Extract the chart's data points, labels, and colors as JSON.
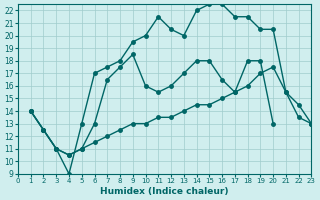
{
  "xlabel": "Humidex (Indice chaleur)",
  "bg_color": "#d0eeee",
  "grid_color": "#a0cccc",
  "line_color": "#006666",
  "xlim": [
    0,
    23
  ],
  "ylim": [
    9,
    22.5
  ],
  "xticks": [
    0,
    1,
    2,
    3,
    4,
    5,
    6,
    7,
    8,
    9,
    10,
    11,
    12,
    13,
    14,
    15,
    16,
    17,
    18,
    19,
    20,
    21,
    22,
    23
  ],
  "yticks": [
    9,
    10,
    11,
    12,
    13,
    14,
    15,
    16,
    17,
    18,
    19,
    20,
    21,
    22
  ],
  "line1": {
    "x": [
      1,
      2,
      3,
      4,
      5,
      6,
      7,
      8,
      9,
      10,
      11,
      12,
      13,
      14,
      15,
      16,
      17,
      18,
      19,
      20,
      21,
      22,
      23
    ],
    "y": [
      14,
      12.5,
      11,
      9,
      13,
      17,
      17.5,
      18,
      19.5,
      20,
      21.5,
      20.5,
      20,
      22,
      22.5,
      22.5,
      21.5,
      21.5,
      20.5,
      20.5,
      15.5,
      14.5,
      13
    ]
  },
  "line2": {
    "x": [
      1,
      2,
      3,
      4,
      5,
      6,
      7,
      8,
      9,
      10,
      11,
      12,
      13,
      14,
      15,
      16,
      17,
      18,
      19,
      20
    ],
    "y": [
      14,
      12.5,
      11,
      10.5,
      11,
      13,
      16.5,
      17.5,
      18.5,
      16,
      15.5,
      16,
      17,
      18,
      18,
      16.5,
      15.5,
      18,
      18,
      13
    ]
  },
  "line3": {
    "x": [
      1,
      2,
      3,
      4,
      5,
      6,
      7,
      8,
      9,
      10,
      11,
      12,
      13,
      14,
      15,
      16,
      17,
      18,
      19,
      20,
      21,
      22,
      23
    ],
    "y": [
      14,
      12.5,
      11,
      10.5,
      11,
      11.5,
      12,
      12.5,
      13,
      13,
      13.5,
      13.5,
      14,
      14.5,
      14.5,
      15,
      15.5,
      16,
      17,
      17.5,
      15.5,
      13.5,
      13
    ]
  }
}
